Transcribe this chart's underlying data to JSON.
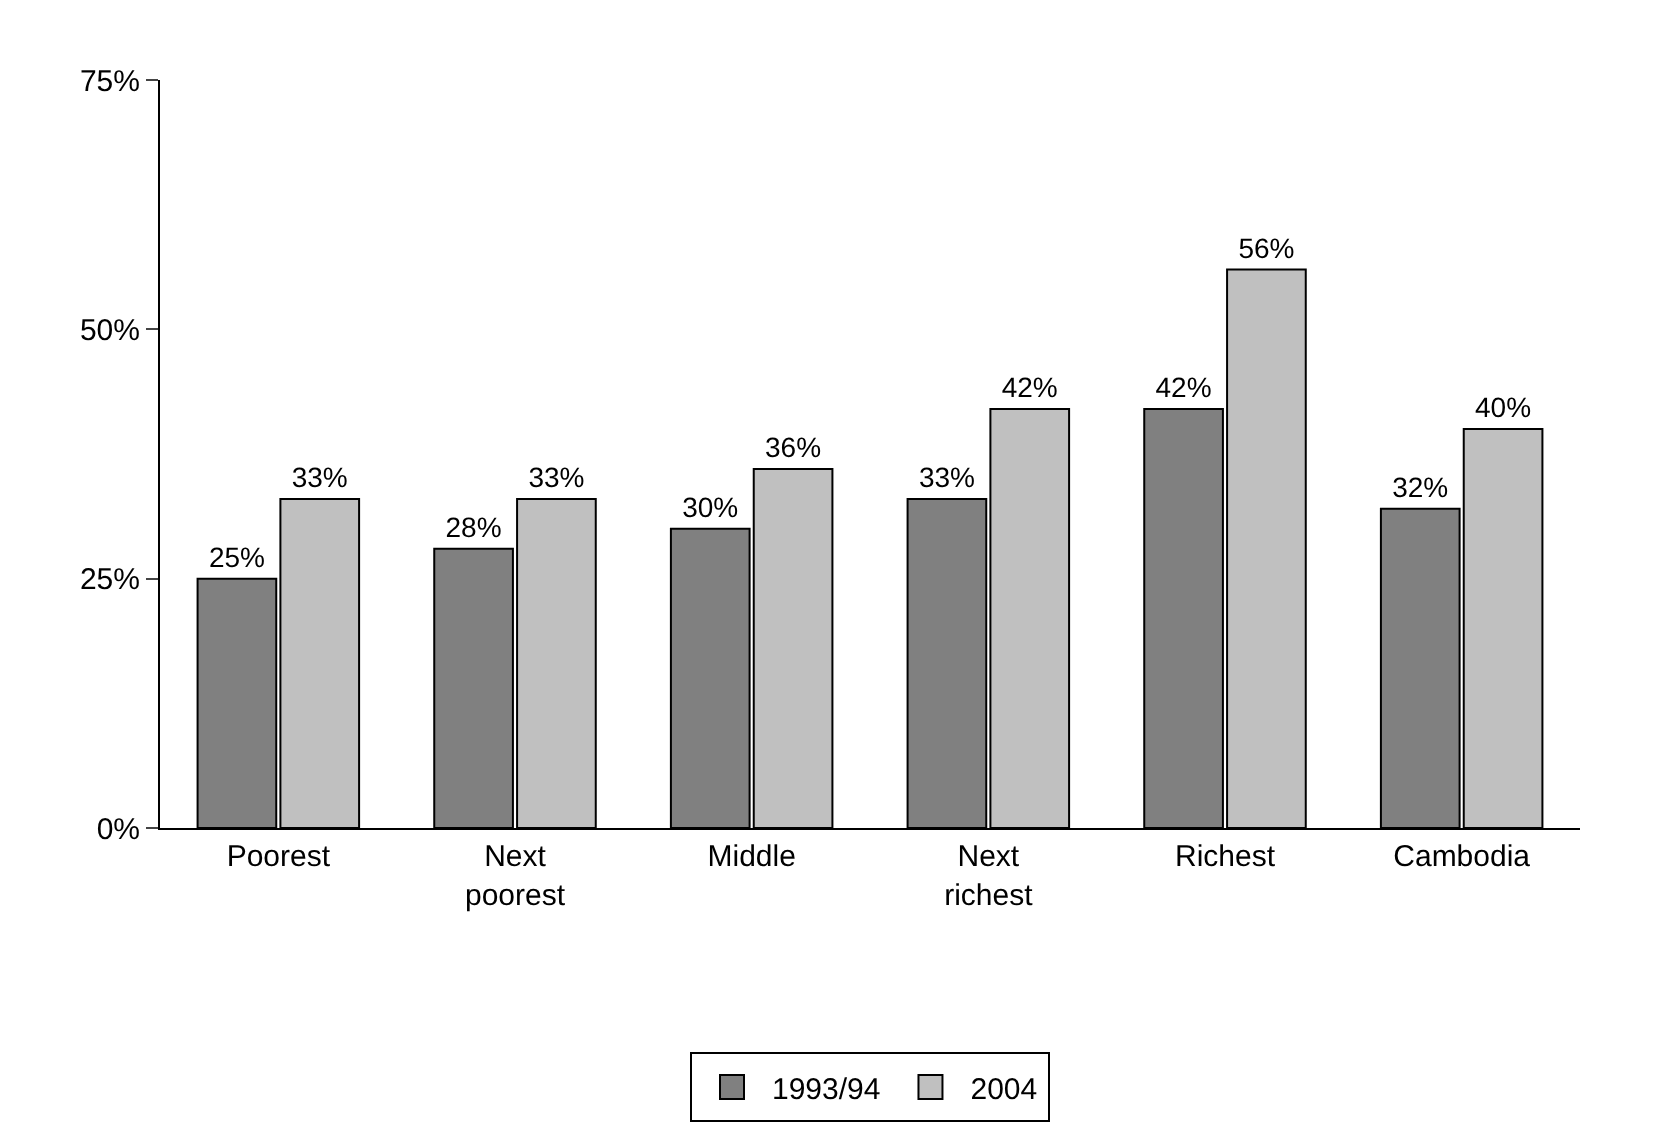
{
  "chart_data": {
    "type": "bar",
    "categories": [
      "Poorest",
      "Next poorest",
      "Middle",
      "Next richest",
      "Richest",
      "Cambodia"
    ],
    "series": [
      {
        "name": "1993/94",
        "color": "#808080",
        "values": [
          25,
          28,
          30,
          33,
          42,
          32
        ],
        "value_labels": [
          "25%",
          "28%",
          "30%",
          "33%",
          "42%",
          "32%"
        ]
      },
      {
        "name": "2004",
        "color": "#c0c0c0",
        "values": [
          33,
          33,
          36,
          42,
          56,
          40
        ],
        "value_labels": [
          "33%",
          "33%",
          "36%",
          "42%",
          "56%",
          "40%"
        ]
      }
    ],
    "ylim": [
      0,
      75
    ],
    "yticks": [
      {
        "value": 0,
        "label": "0%"
      },
      {
        "value": 25,
        "label": "25%"
      },
      {
        "value": 50,
        "label": "50%"
      },
      {
        "value": 75,
        "label": "75%"
      }
    ],
    "legend": "bottom"
  }
}
